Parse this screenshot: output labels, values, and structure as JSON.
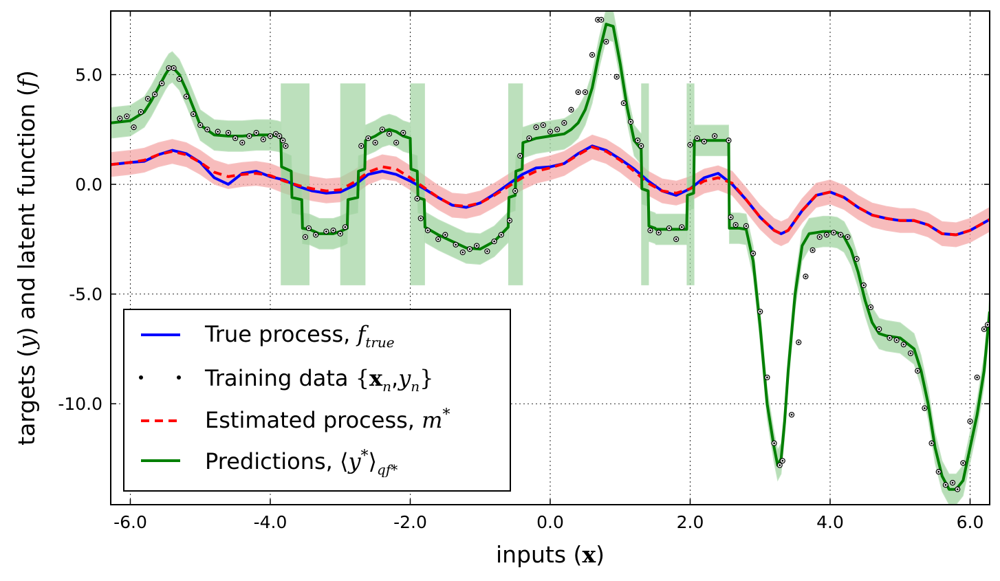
{
  "chart_data": {
    "type": "line",
    "title": "",
    "xlabel": "inputs (",
    "xlabel_symbol": "x",
    "xlabel_close": ")",
    "ylabel": "targets (",
    "ylabel_symbol_y": "y",
    "ylabel_mid": ") and latent function (",
    "ylabel_symbol_f": "f",
    "ylabel_close": ")",
    "xlim": [
      -6.28,
      6.28
    ],
    "ylim": [
      -14.6,
      7.9
    ],
    "grid": true,
    "legend_position": "lower-left",
    "x_ticks": [
      -6.0,
      -4.0,
      -2.0,
      0.0,
      2.0,
      4.0,
      6.0
    ],
    "x_tick_labels": [
      "-6.0",
      "-4.0",
      "-2.0",
      "0.0",
      "2.0",
      "4.0",
      "6.0"
    ],
    "y_ticks": [
      5.0,
      0.0,
      -5.0,
      -10.0
    ],
    "y_tick_labels": [
      "5.0",
      "0.0",
      "-5.0",
      "-10.0"
    ],
    "colors": {
      "true_process": "#0000ff",
      "estimated_process": "#ff0000",
      "predictions": "#007f00",
      "band_red": "#f4a6a6",
      "band_green": "#9fd39f",
      "points": "#000000"
    },
    "legend": [
      {
        "key": "true",
        "text": "True process, ",
        "math": "f",
        "sub": "true"
      },
      {
        "key": "train",
        "text": "Training data ",
        "math_open": "{",
        "math_bold": "x",
        "sub1": "n",
        "mid": ",",
        "math": "y",
        "sub2": "n",
        "math_close": "}"
      },
      {
        "key": "est",
        "text": "Estimated process, ",
        "math": "m",
        "sup": "*"
      },
      {
        "key": "pred",
        "text": "Predictions, ",
        "math_open": "⟨",
        "math": "y",
        "sup": "*",
        "math_close": "⟩",
        "sub": "qf*"
      }
    ],
    "series": [
      {
        "key": "true",
        "x": [
          -6.28,
          -6.0,
          -5.8,
          -5.6,
          -5.4,
          -5.2,
          -5.0,
          -4.8,
          -4.6,
          -4.4,
          -4.2,
          -4.0,
          -3.8,
          -3.6,
          -3.4,
          -3.2,
          -3.0,
          -2.8,
          -2.6,
          -2.4,
          -2.2,
          -2.0,
          -1.8,
          -1.6,
          -1.4,
          -1.2,
          -1.0,
          -0.8,
          -0.6,
          -0.4,
          -0.2,
          0.0,
          0.2,
          0.4,
          0.6,
          0.8,
          1.0,
          1.2,
          1.4,
          1.6,
          1.8,
          2.0,
          2.2,
          2.4,
          2.6,
          2.8,
          3.0,
          3.2,
          3.3,
          3.4,
          3.6,
          3.8,
          4.0,
          4.2,
          4.4,
          4.6,
          4.8,
          5.0,
          5.2,
          5.4,
          5.6,
          5.8,
          6.0,
          6.28
        ],
        "y": [
          0.9,
          1.0,
          1.05,
          1.35,
          1.55,
          1.4,
          1.0,
          0.3,
          0.0,
          0.5,
          0.6,
          0.35,
          0.2,
          -0.1,
          -0.3,
          -0.4,
          -0.35,
          -0.05,
          0.45,
          0.6,
          0.45,
          0.15,
          -0.2,
          -0.6,
          -0.95,
          -1.05,
          -0.85,
          -0.45,
          0.0,
          0.45,
          0.75,
          0.8,
          0.95,
          1.4,
          1.75,
          1.55,
          1.15,
          0.7,
          0.15,
          -0.3,
          -0.5,
          -0.2,
          0.3,
          0.5,
          0.0,
          -0.7,
          -1.5,
          -2.1,
          -2.25,
          -2.1,
          -1.2,
          -0.5,
          -0.35,
          -0.6,
          -1.05,
          -1.4,
          -1.55,
          -1.65,
          -1.65,
          -1.85,
          -2.25,
          -2.3,
          -2.1,
          -1.6
        ]
      },
      {
        "key": "est",
        "x": [
          -6.28,
          -6.0,
          -5.8,
          -5.6,
          -5.4,
          -5.2,
          -5.0,
          -4.8,
          -4.6,
          -4.4,
          -4.2,
          -4.0,
          -3.8,
          -3.6,
          -3.4,
          -3.2,
          -3.0,
          -2.8,
          -2.6,
          -2.4,
          -2.2,
          -2.0,
          -1.8,
          -1.6,
          -1.4,
          -1.2,
          -1.0,
          -0.8,
          -0.6,
          -0.4,
          -0.2,
          0.0,
          0.2,
          0.4,
          0.6,
          0.8,
          1.0,
          1.2,
          1.4,
          1.6,
          1.8,
          2.0,
          2.2,
          2.4,
          2.6,
          2.8,
          3.0,
          3.2,
          3.3,
          3.4,
          3.6,
          3.8,
          4.0,
          4.2,
          4.4,
          4.6,
          4.8,
          5.0,
          5.2,
          5.4,
          5.6,
          5.8,
          6.0,
          6.28
        ],
        "y": [
          0.9,
          1.0,
          1.1,
          1.35,
          1.5,
          1.35,
          1.0,
          0.55,
          0.35,
          0.45,
          0.5,
          0.4,
          0.15,
          -0.05,
          -0.2,
          -0.3,
          -0.25,
          0.1,
          0.55,
          0.8,
          0.7,
          0.3,
          -0.15,
          -0.6,
          -0.95,
          -1.0,
          -0.85,
          -0.5,
          -0.1,
          0.3,
          0.6,
          0.75,
          0.95,
          1.35,
          1.7,
          1.5,
          1.1,
          0.6,
          0.05,
          -0.3,
          -0.4,
          -0.2,
          0.15,
          0.3,
          0.05,
          -0.7,
          -1.5,
          -2.1,
          -2.25,
          -2.1,
          -1.2,
          -0.5,
          -0.35,
          -0.6,
          -1.05,
          -1.4,
          -1.55,
          -1.65,
          -1.65,
          -1.85,
          -2.25,
          -2.3,
          -2.1,
          -1.6
        ],
        "band": 0.55
      },
      {
        "key": "pred",
        "x": [
          -6.28,
          -6.0,
          -5.8,
          -5.7,
          -5.6,
          -5.5,
          -5.45,
          -5.4,
          -5.3,
          -5.2,
          -5.0,
          -4.8,
          -4.6,
          -4.4,
          -4.2,
          -4.0,
          -3.9,
          -3.85,
          -3.84,
          -3.7,
          -3.69,
          -3.55,
          -3.54,
          -3.45,
          -3.44,
          -3.3,
          -3.1,
          -3.0,
          -2.9,
          -2.89,
          -2.75,
          -2.74,
          -2.65,
          -2.64,
          -2.5,
          -2.4,
          -2.3,
          -2.2,
          -2.1,
          -2.0,
          -1.99,
          -1.9,
          -1.89,
          -1.8,
          -1.79,
          -1.6,
          -1.4,
          -1.2,
          -1.0,
          -0.8,
          -0.6,
          -0.59,
          -0.5,
          -0.49,
          -0.4,
          -0.39,
          -0.2,
          0.0,
          0.2,
          0.3,
          0.4,
          0.5,
          0.6,
          0.7,
          0.8,
          0.9,
          1.0,
          1.1,
          1.2,
          1.3,
          1.31,
          1.4,
          1.41,
          1.5,
          1.51,
          1.7,
          1.95,
          1.96,
          2.05,
          2.06,
          2.2,
          2.4,
          2.55,
          2.56,
          2.7,
          2.8,
          2.9,
          3.0,
          3.1,
          3.2,
          3.25,
          3.3,
          3.35,
          3.4,
          3.5,
          3.6,
          3.7,
          3.8,
          3.9,
          4.0,
          4.1,
          4.2,
          4.3,
          4.4,
          4.5,
          4.6,
          4.7,
          4.8,
          5.0,
          5.2,
          5.3,
          5.4,
          5.5,
          5.6,
          5.7,
          5.8,
          5.9,
          6.0,
          6.1,
          6.2,
          6.28
        ],
        "y": [
          2.8,
          2.9,
          3.3,
          3.8,
          4.4,
          5.0,
          5.25,
          5.35,
          5.0,
          4.3,
          2.7,
          2.25,
          2.2,
          2.2,
          2.25,
          2.25,
          2.2,
          2.15,
          0.8,
          0.6,
          -0.6,
          -0.7,
          -2.0,
          -2.05,
          -2.05,
          -2.25,
          -2.25,
          -2.15,
          -2.0,
          -0.7,
          -0.6,
          0.6,
          0.7,
          2.0,
          2.2,
          2.4,
          2.5,
          2.4,
          2.2,
          2.1,
          0.7,
          0.6,
          -0.6,
          -0.7,
          -1.95,
          -2.3,
          -2.6,
          -2.9,
          -2.95,
          -2.6,
          -1.95,
          -0.6,
          -0.5,
          0.6,
          0.7,
          1.9,
          2.1,
          2.2,
          2.3,
          2.5,
          2.8,
          3.4,
          4.4,
          6.0,
          7.3,
          7.2,
          5.5,
          3.5,
          2.0,
          1.6,
          -0.2,
          -0.3,
          -1.9,
          -2.0,
          -2.05,
          -2.05,
          -2.05,
          -0.5,
          -0.4,
          2.0,
          2.0,
          2.0,
          2.0,
          -2.0,
          -2.0,
          -2.05,
          -3.5,
          -6.5,
          -10.0,
          -12.0,
          -12.8,
          -12.5,
          -10.8,
          -8.5,
          -5.0,
          -2.8,
          -2.25,
          -2.2,
          -2.15,
          -2.15,
          -2.2,
          -2.4,
          -3.0,
          -4.0,
          -5.3,
          -6.3,
          -6.8,
          -6.9,
          -7.0,
          -7.5,
          -8.5,
          -10.0,
          -12.0,
          -13.3,
          -13.9,
          -13.9,
          -13.5,
          -12.0,
          -10.5,
          -8.5,
          -5.8
        ],
        "band": 0.7,
        "wide_intervals": [
          [
            -3.85,
            -3.44
          ],
          [
            -3.0,
            -2.64
          ],
          [
            -2.0,
            -1.79
          ],
          [
            -0.6,
            -0.39
          ],
          [
            1.3,
            1.41
          ],
          [
            1.95,
            2.06
          ]
        ],
        "wide_band_y": [
          -4.6,
          4.6
        ]
      }
    ],
    "points": [
      [
        -6.15,
        3.0
      ],
      [
        -6.05,
        3.1
      ],
      [
        -5.95,
        2.6
      ],
      [
        -5.85,
        3.3
      ],
      [
        -5.75,
        3.9
      ],
      [
        -5.65,
        4.1
      ],
      [
        -5.55,
        4.6
      ],
      [
        -5.45,
        5.3
      ],
      [
        -5.38,
        5.3
      ],
      [
        -5.3,
        4.8
      ],
      [
        -5.2,
        4.0
      ],
      [
        -5.1,
        3.2
      ],
      [
        -5.0,
        2.7
      ],
      [
        -4.9,
        2.5
      ],
      [
        -4.75,
        2.4
      ],
      [
        -4.6,
        2.35
      ],
      [
        -4.5,
        2.1
      ],
      [
        -4.4,
        1.9
      ],
      [
        -4.3,
        2.2
      ],
      [
        -4.2,
        2.35
      ],
      [
        -4.1,
        2.05
      ],
      [
        -4.0,
        2.2
      ],
      [
        -3.92,
        2.3
      ],
      [
        -3.87,
        2.2
      ],
      [
        -3.82,
        2.0
      ],
      [
        -3.78,
        1.75
      ],
      [
        -3.5,
        -2.4
      ],
      [
        -3.45,
        -2.0
      ],
      [
        -3.35,
        -2.3
      ],
      [
        -3.2,
        -2.15
      ],
      [
        -3.1,
        -2.1
      ],
      [
        -3.0,
        -2.25
      ],
      [
        -2.93,
        -1.95
      ],
      [
        -2.7,
        1.75
      ],
      [
        -2.6,
        2.1
      ],
      [
        -2.5,
        1.9
      ],
      [
        -2.4,
        2.5
      ],
      [
        -2.3,
        2.3
      ],
      [
        -2.2,
        1.9
      ],
      [
        -2.1,
        2.35
      ],
      [
        -1.9,
        -0.65
      ],
      [
        -1.85,
        -1.55
      ],
      [
        -1.75,
        -2.1
      ],
      [
        -1.6,
        -2.5
      ],
      [
        -1.5,
        -2.3
      ],
      [
        -1.35,
        -2.75
      ],
      [
        -1.25,
        -3.1
      ],
      [
        -1.15,
        -2.95
      ],
      [
        -1.05,
        -2.8
      ],
      [
        -0.9,
        -3.05
      ],
      [
        -0.8,
        -2.6
      ],
      [
        -0.7,
        -2.3
      ],
      [
        -0.58,
        -1.65
      ],
      [
        -0.5,
        -0.3
      ],
      [
        -0.43,
        1.3
      ],
      [
        -0.3,
        2.1
      ],
      [
        -0.2,
        2.6
      ],
      [
        -0.1,
        2.7
      ],
      [
        0.0,
        2.4
      ],
      [
        0.1,
        2.5
      ],
      [
        0.2,
        2.8
      ],
      [
        0.3,
        3.4
      ],
      [
        0.4,
        4.2
      ],
      [
        0.5,
        4.2
      ],
      [
        0.6,
        5.9
      ],
      [
        0.68,
        7.5
      ],
      [
        0.73,
        7.5
      ],
      [
        0.8,
        6.5
      ],
      [
        0.95,
        4.9
      ],
      [
        1.05,
        3.7
      ],
      [
        1.15,
        2.85
      ],
      [
        1.25,
        2.0
      ],
      [
        1.3,
        1.75
      ],
      [
        1.43,
        -2.1
      ],
      [
        1.55,
        -2.2
      ],
      [
        1.7,
        -2.0
      ],
      [
        1.8,
        -2.5
      ],
      [
        1.88,
        -1.95
      ],
      [
        2.0,
        1.8
      ],
      [
        2.1,
        2.1
      ],
      [
        2.2,
        1.95
      ],
      [
        2.35,
        2.2
      ],
      [
        2.55,
        2.0
      ],
      [
        2.58,
        -1.5
      ],
      [
        2.65,
        -1.85
      ],
      [
        2.8,
        -1.9
      ],
      [
        2.9,
        -3.15
      ],
      [
        3.0,
        -5.8
      ],
      [
        3.1,
        -8.8
      ],
      [
        3.2,
        -11.8
      ],
      [
        3.28,
        -12.8
      ],
      [
        3.32,
        -12.6
      ],
      [
        3.45,
        -10.5
      ],
      [
        3.55,
        -7.2
      ],
      [
        3.65,
        -4.2
      ],
      [
        3.75,
        -3.0
      ],
      [
        3.85,
        -2.4
      ],
      [
        3.95,
        -2.3
      ],
      [
        4.05,
        -2.2
      ],
      [
        4.15,
        -2.3
      ],
      [
        4.25,
        -2.4
      ],
      [
        4.38,
        -3.4
      ],
      [
        4.48,
        -4.6
      ],
      [
        4.58,
        -5.6
      ],
      [
        4.7,
        -6.6
      ],
      [
        4.85,
        -7.0
      ],
      [
        4.95,
        -7.1
      ],
      [
        5.05,
        -7.3
      ],
      [
        5.15,
        -7.7
      ],
      [
        5.25,
        -8.5
      ],
      [
        5.35,
        -10.2
      ],
      [
        5.45,
        -11.8
      ],
      [
        5.55,
        -13.1
      ],
      [
        5.65,
        -13.7
      ],
      [
        5.75,
        -13.6
      ],
      [
        5.82,
        -13.9
      ],
      [
        5.9,
        -12.7
      ],
      [
        6.0,
        -10.8
      ],
      [
        6.1,
        -8.8
      ],
      [
        6.2,
        -6.6
      ],
      [
        6.25,
        -6.4
      ]
    ]
  }
}
